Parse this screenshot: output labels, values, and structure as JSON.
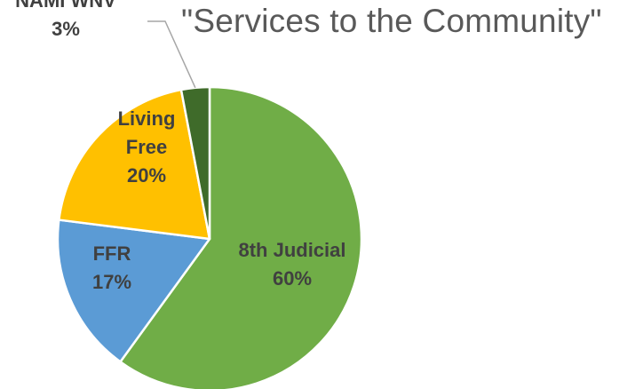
{
  "chart_data": {
    "type": "pie",
    "title": "\"Services to the Community\"",
    "slices": [
      {
        "label": "8th Judicial",
        "value": 60,
        "display": "60%",
        "color": "#70ad47",
        "label_color": "#404040"
      },
      {
        "label": "FFR",
        "value": 17,
        "display": "17%",
        "color": "#5b9bd5",
        "label_color": "#404040"
      },
      {
        "label": "Living Free",
        "value": 20,
        "display": "20%",
        "color": "#ffc000",
        "label_color": "#404040"
      },
      {
        "label": "NAMI WNV",
        "value": 3,
        "display": "3%",
        "color": "#3f6b2a",
        "label_color": "#404040"
      }
    ],
    "start_angle_deg": 0,
    "direction": "clockwise",
    "legend": "none"
  }
}
